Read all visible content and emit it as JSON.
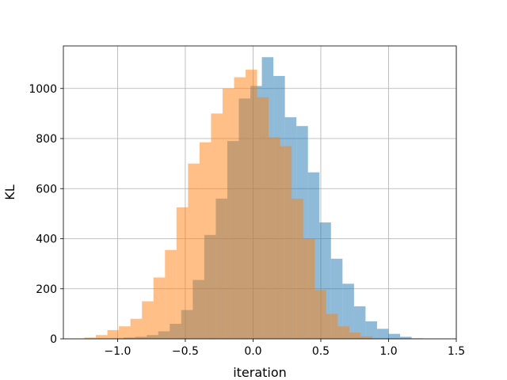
{
  "chart_data": {
    "type": "bar",
    "subtype": "overlapping-histogram",
    "title": "",
    "xlabel": "iteration",
    "ylabel": "KL",
    "xlim": [
      -1.4,
      1.5
    ],
    "ylim": [
      0,
      1170
    ],
    "x_ticks": [
      -1.0,
      -0.5,
      0.0,
      0.5,
      1.0,
      1.5
    ],
    "x_tick_labels": [
      "−1.0",
      "−0.5",
      "0.0",
      "0.5",
      "1.0",
      "1.5"
    ],
    "y_ticks": [
      0,
      200,
      400,
      600,
      800,
      1000
    ],
    "y_tick_labels": [
      "0",
      "200",
      "400",
      "600",
      "800",
      "1000"
    ],
    "grid": true,
    "legend": "none",
    "series": [
      {
        "color": "#1f77b4",
        "opacity": 0.5,
        "bin_edges": [
          -1.04,
          -0.955,
          -0.87,
          -0.785,
          -0.7,
          -0.615,
          -0.53,
          -0.445,
          -0.36,
          -0.275,
          -0.19,
          -0.105,
          -0.02,
          0.065,
          0.15,
          0.235,
          0.32,
          0.405,
          0.49,
          0.575,
          0.66,
          0.745,
          0.83,
          0.915,
          1.0,
          1.085,
          1.17,
          1.255
        ],
        "counts": [
          2,
          5,
          8,
          15,
          30,
          60,
          115,
          235,
          415,
          560,
          790,
          960,
          1010,
          1125,
          1050,
          885,
          850,
          665,
          465,
          320,
          220,
          130,
          70,
          40,
          20,
          8,
          2
        ]
      },
      {
        "color": "#ff7f0e",
        "opacity": 0.5,
        "bin_edges": [
          -1.245,
          -1.16,
          -1.075,
          -0.99,
          -0.905,
          -0.82,
          -0.735,
          -0.65,
          -0.565,
          -0.48,
          -0.395,
          -0.31,
          -0.225,
          -0.14,
          -0.055,
          0.03,
          0.115,
          0.2,
          0.285,
          0.37,
          0.455,
          0.54,
          0.625,
          0.71,
          0.795,
          0.88
        ],
        "counts": [
          5,
          15,
          35,
          50,
          80,
          150,
          245,
          355,
          525,
          700,
          785,
          900,
          1000,
          1045,
          1075,
          965,
          805,
          770,
          560,
          400,
          195,
          100,
          50,
          25,
          10
        ]
      }
    ]
  }
}
